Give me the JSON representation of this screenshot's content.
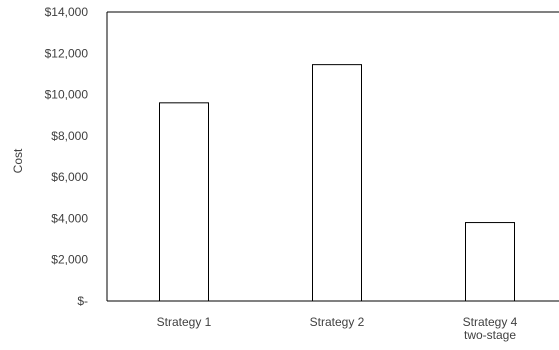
{
  "chart_data": {
    "type": "bar",
    "title": "",
    "xlabel": "",
    "ylabel": "Cost",
    "categories": [
      [
        "Strategy 1"
      ],
      [
        "Strategy 2"
      ],
      [
        "Strategy 4",
        "two-stage"
      ]
    ],
    "values": [
      9600,
      11450,
      3800
    ],
    "ylim": [
      0,
      14000
    ],
    "y_ticks": [
      0,
      2000,
      4000,
      6000,
      8000,
      10000,
      12000,
      14000
    ],
    "y_tick_labels": [
      "$-",
      "$2,000",
      "$4,000",
      "$6,000",
      "$8,000",
      "$10,000",
      "$12,000",
      "$14,000"
    ],
    "grid": false,
    "legend": "none",
    "colors": {
      "bar_fill": "#ffffff",
      "bar_stroke": "#000000",
      "axis": "#000000",
      "text": "#404040"
    }
  }
}
